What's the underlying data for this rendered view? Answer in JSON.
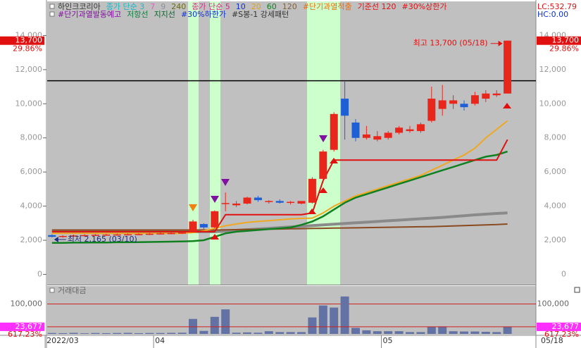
{
  "chart_data": {
    "type": "candlestick",
    "header_rows": [
      [
        {
          "text": "하인크코리아",
          "color": "#333333"
        },
        {
          "text": "종가 단순 3",
          "color": "#16b8c8"
        },
        {
          "text": "7",
          "color": "#e060c0"
        },
        {
          "text": "9",
          "color": "#9090a0"
        },
        {
          "text": "240",
          "color": "#6a6a10"
        },
        {
          "text": "종가 단순 5",
          "color": "#e0208a"
        },
        {
          "text": "10",
          "color": "#1030d0"
        },
        {
          "text": "20",
          "color": "#e8a010"
        },
        {
          "text": "60",
          "color": "#108020"
        },
        {
          "text": "120",
          "color": "#806040"
        },
        {
          "text": "#단기과열적출",
          "color": "#e87010"
        },
        {
          "text": "기준선 120",
          "color": "#e01010"
        },
        {
          "text": "#30%상한가",
          "color": "#e01010"
        }
      ],
      [
        {
          "text": "#단기과열발동예고",
          "color": "#8010a0"
        },
        {
          "text": "저항선",
          "color": "#108040"
        },
        {
          "text": "지지선",
          "color": "#106030"
        },
        {
          "text": "#30%하한가",
          "color": "#1030d0"
        },
        {
          "text": "#S봉-1 강세패턴",
          "color": "#333333"
        }
      ]
    ],
    "corner_labels": [
      {
        "text": "LC:532.79",
        "color": "#e01010"
      },
      {
        "text": "HC:0.00",
        "color": "#1030d0"
      }
    ],
    "categories": [
      "2022/03",
      null,
      null,
      null,
      null,
      null,
      null,
      null,
      null,
      null,
      "04",
      null,
      null,
      null,
      null,
      null,
      null,
      null,
      null,
      null,
      null,
      null,
      null,
      null,
      null,
      null,
      null,
      null,
      null,
      null,
      null,
      "05",
      null,
      null,
      null,
      null,
      null,
      null,
      null,
      null,
      null,
      null,
      null
    ],
    "cursor_date": "05/18",
    "open": [
      2300,
      2200,
      2250,
      2280,
      2300,
      2320,
      2330,
      2340,
      2350,
      2360,
      2380,
      2400,
      2420,
      2500,
      2950,
      2750,
      4150,
      4050,
      4150,
      4500,
      4250,
      4300,
      4200,
      4150,
      4200,
      5600,
      7300,
      10300,
      8900,
      8000,
      7900,
      8000,
      8300,
      8400,
      8400,
      9000,
      9700,
      10000,
      10000,
      10000,
      10300,
      10500,
      10600
    ],
    "high": [
      2350,
      2300,
      2330,
      2350,
      2370,
      2380,
      2390,
      2400,
      2410,
      2430,
      2450,
      2470,
      2500,
      3200,
      3000,
      3750,
      4800,
      4300,
      4550,
      4600,
      4350,
      4400,
      4300,
      4300,
      5700,
      7300,
      9500,
      11300,
      9100,
      8700,
      8400,
      8400,
      8700,
      8700,
      8900,
      11000,
      11100,
      10500,
      10200,
      10700,
      10800,
      10800,
      13700
    ],
    "low": [
      2165,
      2150,
      2200,
      2230,
      2250,
      2270,
      2280,
      2290,
      2300,
      2310,
      2330,
      2350,
      2370,
      2450,
      2650,
      2700,
      3700,
      3950,
      4100,
      4250,
      4150,
      4150,
      4100,
      4100,
      4150,
      5500,
      7200,
      7900,
      7800,
      7900,
      7800,
      7900,
      8200,
      8300,
      8300,
      8900,
      9300,
      9700,
      9600,
      9900,
      10100,
      10400,
      10600
    ],
    "close": [
      2200,
      2250,
      2280,
      2300,
      2320,
      2330,
      2340,
      2350,
      2360,
      2380,
      2400,
      2420,
      2450,
      3100,
      2750,
      3700,
      4180,
      4150,
      4500,
      4350,
      4300,
      4200,
      4250,
      4300,
      5600,
      7200,
      9400,
      9300,
      8000,
      8200,
      8100,
      8300,
      8600,
      8500,
      8800,
      10300,
      10200,
      10200,
      9800,
      10500,
      10600,
      10600,
      13700
    ],
    "up_color": "#e8261b",
    "down_color": "#1e5fd6",
    "series": [
      {
        "color": "#8a8a8a",
        "width": 4,
        "values": [
          2500,
          2500,
          2500,
          2500,
          2500,
          2500,
          2500,
          2500,
          2500,
          2500,
          2500,
          2500,
          2500,
          2500,
          2500,
          2500,
          2540,
          2580,
          2620,
          2660,
          2700,
          2740,
          2780,
          2820,
          2860,
          2900,
          2940,
          2980,
          3020,
          3060,
          3100,
          3140,
          3180,
          3220,
          3260,
          3300,
          3340,
          3390,
          3440,
          3490,
          3530,
          3570,
          3600
        ]
      },
      {
        "color": "#8a4a20",
        "width": 2,
        "values": [
          2600,
          2600,
          2600,
          2600,
          2600,
          2600,
          2600,
          2600,
          2600,
          2600,
          2600,
          2600,
          2600,
          2600,
          2600,
          2600,
          2610,
          2620,
          2630,
          2640,
          2650,
          2660,
          2670,
          2680,
          2690,
          2700,
          2710,
          2720,
          2730,
          2740,
          2750,
          2760,
          2770,
          2780,
          2790,
          2800,
          2820,
          2840,
          2860,
          2880,
          2900,
          2920,
          2950
        ]
      },
      {
        "color": "#f0a820",
        "width": 2,
        "values": [
          2400,
          2400,
          2400,
          2400,
          2400,
          2400,
          2400,
          2400,
          2400,
          2400,
          2400,
          2400,
          2400,
          2450,
          2550,
          2700,
          2850,
          2950,
          3050,
          3100,
          3150,
          3200,
          3250,
          3280,
          3300,
          3600,
          4000,
          4300,
          4600,
          4800,
          5000,
          5200,
          5400,
          5600,
          5800,
          6100,
          6400,
          6700,
          7000,
          7400,
          8000,
          8500,
          9000
        ]
      },
      {
        "color": "#108020",
        "width": 2.5,
        "values": [
          1850,
          1850,
          1860,
          1860,
          1870,
          1870,
          1880,
          1880,
          1890,
          1900,
          1910,
          1920,
          1930,
          1950,
          2000,
          2200,
          2400,
          2500,
          2550,
          2600,
          2650,
          2700,
          2750,
          2900,
          3100,
          3400,
          3800,
          4200,
          4500,
          4700,
          4900,
          5100,
          5300,
          5500,
          5700,
          5900,
          6100,
          6300,
          6500,
          6700,
          6900,
          7000,
          7200
        ]
      },
      {
        "color": "#e01010",
        "width": 2,
        "values": [
          2500,
          2500,
          2500,
          2500,
          2500,
          2500,
          2500,
          2500,
          2500,
          2500,
          2500,
          2500,
          2500,
          2500,
          2500,
          2500,
          3500,
          3500,
          3500,
          3500,
          3500,
          3500,
          3500,
          3500,
          3600,
          5500,
          6700,
          6700,
          6700,
          6700,
          6700,
          6700,
          6700,
          6700,
          6700,
          6700,
          6700,
          6700,
          6700,
          6700,
          6700,
          6700,
          7900
        ]
      }
    ],
    "hline": 11350,
    "ylim": [
      -600,
      16000
    ],
    "yticks": [
      0,
      {
        "value": 2000,
        "label": "2,000"
      },
      {
        "value": 4000,
        "label": "4,000"
      },
      {
        "value": 6000,
        "label": "6,000"
      },
      {
        "value": 8000,
        "label": "8,000"
      },
      {
        "value": 10000,
        "label": "10,000"
      },
      {
        "value": 12000,
        "label": "12,000"
      },
      {
        "value": 14000,
        "label": "14,000"
      }
    ],
    "last_price": {
      "value": 13700,
      "label": "13,700"
    },
    "last_change": "29.86%",
    "high_note": "최고 13,700 (05/18)",
    "low_note": "최저 2,165 (03/10)",
    "volume_title": "거래대금",
    "volume_color": "#6272a4",
    "volume": [
      3000,
      2500,
      3500,
      2000,
      3000,
      2500,
      3000,
      3500,
      2500,
      3000,
      3000,
      3500,
      4000,
      50000,
      10000,
      57000,
      82000,
      4000,
      5000,
      4000,
      9000,
      6000,
      6000,
      6000,
      55000,
      95000,
      88000,
      125000,
      20000,
      12000,
      9000,
      9000,
      9000,
      6000,
      6000,
      24000,
      25000,
      9000,
      8000,
      8000,
      7000,
      6000,
      23677
    ],
    "vlim": [
      0,
      160000
    ],
    "vticks": [
      {
        "value": 100000,
        "label": "100,000"
      }
    ],
    "last_volume": {
      "value": 23677,
      "label": "23,677"
    },
    "volume_change": "617.23%"
  }
}
